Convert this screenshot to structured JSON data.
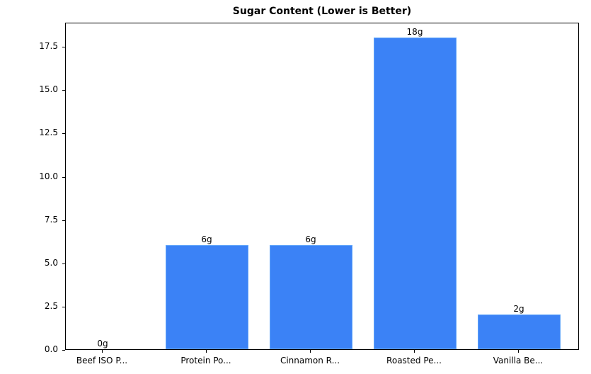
{
  "chart_data": {
    "type": "bar",
    "title": "Sugar Content (Lower is Better)",
    "xlabel": "",
    "ylabel": "",
    "categories": [
      "Beef ISO P...",
      "Protein Po...",
      "Cinnamon R...",
      "Roasted Pe...",
      "Vanilla Be..."
    ],
    "values": [
      0,
      6,
      6,
      18,
      2
    ],
    "data_labels": [
      "0g",
      "6g",
      "6g",
      "18g",
      "2g"
    ],
    "ylim": [
      0,
      18.9
    ],
    "yticks": [
      0.0,
      2.5,
      5.0,
      7.5,
      10.0,
      12.5,
      15.0,
      17.5
    ],
    "ytick_labels": [
      "0.0",
      "2.5",
      "5.0",
      "7.5",
      "10.0",
      "12.5",
      "15.0",
      "17.5"
    ],
    "grid": false,
    "legend": null,
    "bar_color": "#3b82f6",
    "bar_edge_color": "#60a5fa"
  }
}
